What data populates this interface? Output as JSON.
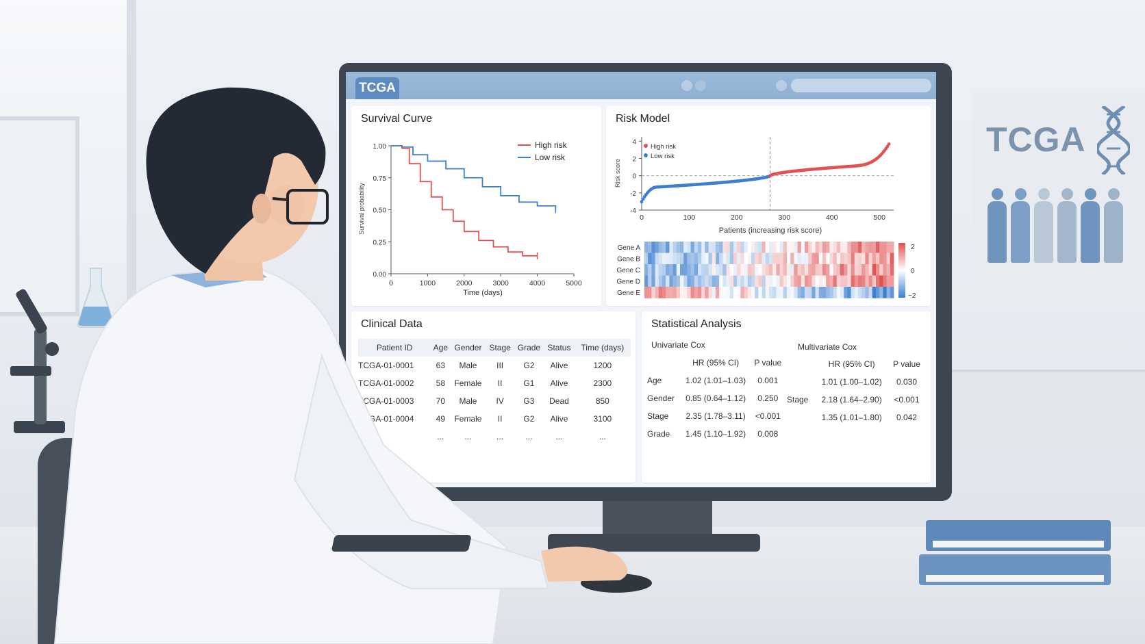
{
  "app": {
    "brand": "TCGA"
  },
  "poster": {
    "title": "TCGA"
  },
  "colors": {
    "high_risk": "#e05252",
    "low_risk": "#3c7fcf",
    "accent": "#5d8bc0"
  },
  "survival": {
    "title": "Survival Curve",
    "legend": [
      "High risk",
      "Low risk"
    ],
    "ylabel": "Survival probability",
    "xlabel": "Time (days)"
  },
  "risk": {
    "title": "Risk Model",
    "legend": [
      "High risk",
      "Low risk"
    ],
    "ylabel": "Risk score",
    "xlabel": "Patients (increasing risk score)",
    "genes": [
      "Gene A",
      "Gene B",
      "Gene C",
      "Gene D",
      "Gene E"
    ],
    "scale_labels": [
      "2",
      "0",
      "−2"
    ]
  },
  "clinical": {
    "title": "Clinical Data",
    "headers": [
      "Patient ID",
      "Age",
      "Gender",
      "Stage",
      "Grade",
      "Status",
      "Time (days)"
    ],
    "rows": [
      [
        "TCGA-01-0001",
        "63",
        "Male",
        "III",
        "G2",
        "Alive",
        "1200"
      ],
      [
        "TCGA-01-0002",
        "58",
        "Female",
        "II",
        "G1",
        "Alive",
        "2300"
      ],
      [
        "TCGA-01-0003",
        "70",
        "Male",
        "IV",
        "G3",
        "Dead",
        "850"
      ],
      [
        "TCGA-01-0004",
        "49",
        "Female",
        "II",
        "G2",
        "Alive",
        "3100"
      ],
      [
        "...",
        "...",
        "...",
        "...",
        "...",
        "...",
        "..."
      ]
    ]
  },
  "stats": {
    "title": "Statistical Analysis",
    "univariate": {
      "title": "Univariate Cox",
      "headers": [
        "",
        "HR (95% CI)",
        "P value"
      ],
      "rows": [
        [
          "Age",
          "1.02 (1.01–1.03)",
          "0.001"
        ],
        [
          "Gender",
          "0.85 (0.64–1.12)",
          "0.250"
        ],
        [
          "Stage",
          "2.35 (1.78–3.11)",
          "<0.001"
        ],
        [
          "Grade",
          "1.45 (1.10–1.92)",
          "0.008"
        ]
      ]
    },
    "multivariate": {
      "title": "Multivariate Cox",
      "headers": [
        "",
        "HR (95% CI)",
        "P value"
      ],
      "rows": [
        [
          "",
          "1.01 (1.00–1.02)",
          "0.030"
        ],
        [
          "Stage",
          "2.18 (1.64–2.90)",
          "<0.001"
        ],
        [
          "",
          "1.35 (1.01–1.80)",
          "0.042"
        ]
      ]
    }
  },
  "chart_data": [
    {
      "type": "line",
      "title": "Survival Curve",
      "xlabel": "Time (days)",
      "ylabel": "Survival probability",
      "xlim": [
        0,
        5000
      ],
      "ylim": [
        0,
        1
      ],
      "xticks": [
        0,
        1000,
        2000,
        3000,
        4000,
        5000
      ],
      "yticks": [
        0,
        0.25,
        0.5,
        0.75,
        1
      ],
      "ytick_labels": [
        "0.00",
        "0.25",
        "0.50",
        "0.75",
        "1.00"
      ],
      "legend_position": "top-right",
      "series": [
        {
          "name": "High risk",
          "color": "#e05252",
          "x": [
            0,
            300,
            500,
            800,
            1100,
            1400,
            1700,
            2000,
            2400,
            2800,
            3200,
            3600,
            4000
          ],
          "y": [
            1.0,
            0.98,
            0.86,
            0.72,
            0.6,
            0.5,
            0.41,
            0.33,
            0.26,
            0.21,
            0.17,
            0.14,
            0.14
          ]
        },
        {
          "name": "Low risk",
          "color": "#3c7fcf",
          "x": [
            0,
            300,
            600,
            1000,
            1500,
            2000,
            2500,
            3000,
            3500,
            4000,
            4500
          ],
          "y": [
            1.0,
            0.99,
            0.93,
            0.88,
            0.82,
            0.75,
            0.68,
            0.61,
            0.56,
            0.53,
            0.5
          ]
        }
      ]
    },
    {
      "type": "scatter",
      "title": "Risk Model",
      "xlabel": "Patients (increasing risk score)",
      "ylabel": "Risk score",
      "xlim": [
        0,
        530
      ],
      "ylim": [
        -4,
        4.5
      ],
      "xticks": [
        0,
        100,
        200,
        300,
        400,
        500
      ],
      "yticks": [
        -4,
        -2,
        0,
        2,
        4
      ],
      "cutoff_x": 270,
      "cutoff_y": 0,
      "legend_position": "top-left",
      "series": [
        {
          "name": "Low risk",
          "color": "#3c7fcf",
          "x_range": [
            0,
            270
          ],
          "n": 90
        },
        {
          "name": "High risk",
          "color": "#e05252",
          "x_range": [
            270,
            520
          ],
          "n": 85
        }
      ]
    },
    {
      "type": "heatmap",
      "rows": [
        "Gene A",
        "Gene B",
        "Gene C",
        "Gene D",
        "Gene E"
      ],
      "color_range": [
        -2,
        2
      ],
      "colors": [
        "#3c7fcf",
        "#ffffff",
        "#e05252"
      ]
    }
  ]
}
